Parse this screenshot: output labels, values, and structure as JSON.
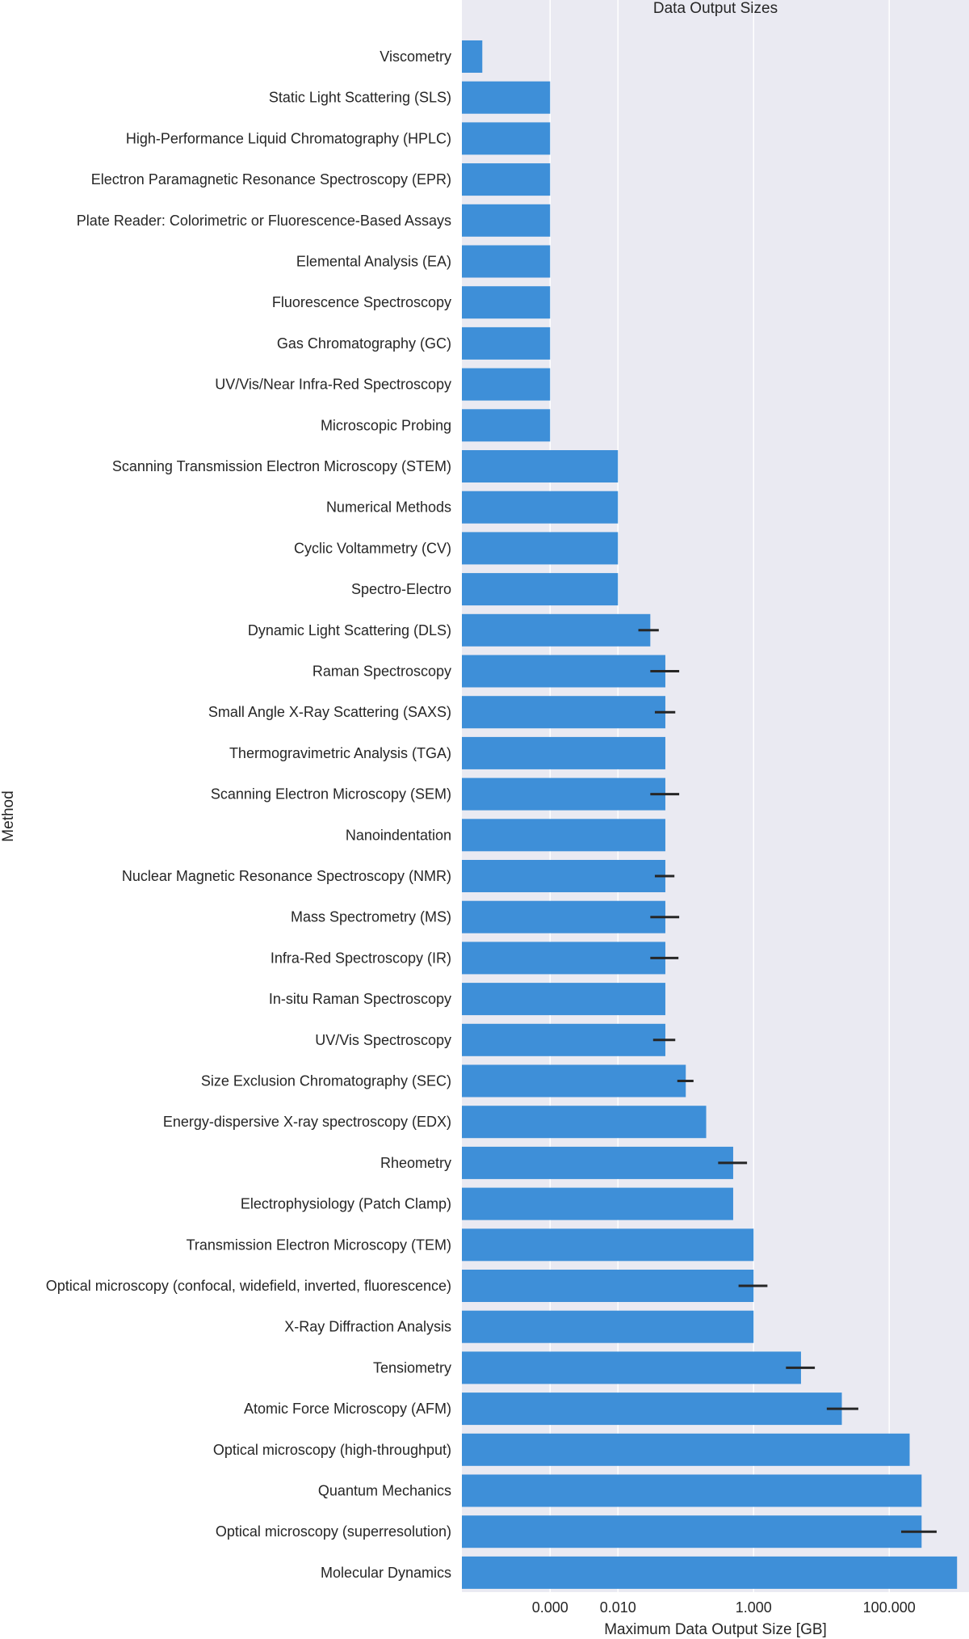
{
  "chart_data": {
    "type": "bar",
    "orientation": "horizontal",
    "title": "Data Output Sizes",
    "xlabel": "Maximum Data Output Size [GB]",
    "ylabel": "Method",
    "xscale": "log",
    "xlim": [
      5e-05,
      1500
    ],
    "x_tick_values": [
      0.001,
      0.01,
      1,
      100
    ],
    "x_tick_labels": [
      "0.000",
      "0.010",
      "1.000",
      "100.000"
    ],
    "grid": true,
    "bar_color": "#3e8fd8",
    "background_color": "#eaeaf2",
    "errorbar_color": "#262626",
    "categories": [
      "Viscometry",
      "Static Light Scattering (SLS)",
      "High-Performance Liquid Chromatography (HPLC)",
      "Electron Paramagnetic Resonance Spectroscopy (EPR)",
      "Plate Reader: Colorimetric or Fluorescence-Based Assays",
      "Elemental Analysis (EA)",
      "Fluorescence Spectroscopy",
      "Gas Chromatography (GC)",
      "UV/Vis/Near Infra-Red Spectroscopy",
      "Microscopic Probing",
      "Scanning Transmission Electron Microscopy (STEM)",
      "Numerical Methods",
      "Cyclic Voltammetry (CV)",
      "Spectro-Electro",
      "Dynamic Light Scattering (DLS)",
      "Raman Spectroscopy",
      "Small Angle X-Ray Scattering (SAXS)",
      "Thermogravimetric Analysis (TGA)",
      "Scanning Electron Microscopy (SEM)",
      "Nanoindentation",
      "Nuclear Magnetic Resonance Spectroscopy (NMR)",
      "Mass Spectrometry (MS)",
      "Infra-Red Spectroscopy (IR)",
      "In-situ Raman Spectroscopy",
      "UV/Vis Spectroscopy",
      "Size Exclusion Chromatography (SEC)",
      "Energy-dispersive X-ray spectroscopy (EDX)",
      "Rheometry",
      "Electrophysiology (Patch Clamp)",
      "Transmission Electron Microscopy (TEM)",
      "Optical microscopy (confocal, widefield, inverted, fluorescence)",
      "X-Ray Diffraction Analysis",
      "Tensiometry",
      "Atomic Force Microscopy (AFM)",
      "Optical microscopy (high-throughput)",
      "Quantum Mechanics",
      "Optical microscopy (superresolution)",
      "Molecular Dynamics"
    ],
    "values": [
      0.0001,
      0.001,
      0.001,
      0.001,
      0.001,
      0.001,
      0.001,
      0.001,
      0.001,
      0.001,
      0.01,
      0.01,
      0.01,
      0.01,
      0.03,
      0.05,
      0.05,
      0.05,
      0.05,
      0.05,
      0.05,
      0.05,
      0.05,
      0.05,
      0.05,
      0.1,
      0.2,
      0.5,
      0.5,
      1,
      1,
      1,
      5,
      20,
      200,
      300,
      300,
      1000
    ],
    "errors": [
      null,
      null,
      null,
      null,
      null,
      null,
      null,
      null,
      null,
      null,
      null,
      null,
      null,
      null,
      [
        0.02,
        0.04
      ],
      [
        0.03,
        0.08
      ],
      [
        0.035,
        0.07
      ],
      null,
      [
        0.03,
        0.08
      ],
      null,
      [
        0.035,
        0.068
      ],
      [
        0.03,
        0.08
      ],
      [
        0.03,
        0.078
      ],
      null,
      [
        0.033,
        0.07
      ],
      [
        0.075,
        0.13
      ],
      null,
      [
        0.3,
        0.8
      ],
      null,
      null,
      [
        0.6,
        1.6
      ],
      null,
      [
        3,
        8
      ],
      [
        12,
        35
      ],
      null,
      null,
      [
        150,
        500
      ],
      null
    ]
  }
}
